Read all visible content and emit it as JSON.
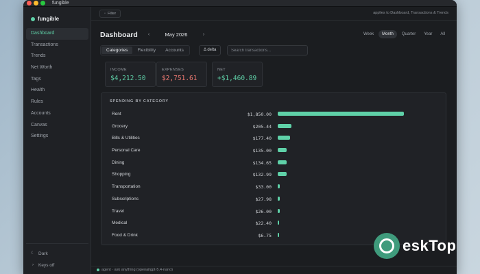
{
  "window": {
    "title": "fungible"
  },
  "brand": {
    "name": "fungible"
  },
  "sidebar": {
    "items": [
      {
        "label": "Dashboard",
        "active": true
      },
      {
        "label": "Transactions"
      },
      {
        "label": "Trends"
      },
      {
        "label": "Net Worth"
      },
      {
        "label": "Tags"
      },
      {
        "label": "Health"
      },
      {
        "label": "Rules"
      },
      {
        "label": "Accounts"
      },
      {
        "label": "Canvas"
      },
      {
        "label": "Settings"
      }
    ],
    "footer": {
      "theme_label": "Dark",
      "keys_label": "Keys off"
    }
  },
  "topbar": {
    "filter_label": "Filter",
    "note": "applies to Dashboard, Transactions & Trends"
  },
  "header": {
    "title": "Dashboard",
    "month": "May 2026",
    "prev_icon": "chevron-left-icon",
    "next_icon": "chevron-right-icon",
    "ranges": [
      {
        "label": "Week"
      },
      {
        "label": "Month",
        "active": true
      },
      {
        "label": "Quarter"
      },
      {
        "label": "Year"
      },
      {
        "label": "All"
      }
    ]
  },
  "toolbar": {
    "views": [
      {
        "label": "Categories",
        "active": true
      },
      {
        "label": "Flexibility"
      },
      {
        "label": "Accounts"
      }
    ],
    "delta_label": "Δ delta",
    "search_placeholder": "Search transactions..."
  },
  "summary": {
    "income": {
      "label": "INCOME",
      "value": "$4,212.50"
    },
    "expenses": {
      "label": "EXPENSES",
      "value": "$2,751.61"
    },
    "net": {
      "label": "NET",
      "value": "+$1,460.89"
    }
  },
  "spending": {
    "title": "SPENDING BY CATEGORY",
    "bar_color": "#5fd1a8",
    "rows": [
      {
        "category": "Rent",
        "amount": "$1,850.00",
        "value": 1850.0
      },
      {
        "category": "Grocery",
        "amount": "$205.44",
        "value": 205.44
      },
      {
        "category": "Bills & Utilities",
        "amount": "$177.40",
        "value": 177.4
      },
      {
        "category": "Personal Care",
        "amount": "$135.00",
        "value": 135.0
      },
      {
        "category": "Dining",
        "amount": "$134.65",
        "value": 134.65
      },
      {
        "category": "Shopping",
        "amount": "$132.99",
        "value": 132.99
      },
      {
        "category": "Transportation",
        "amount": "$33.00",
        "value": 33.0
      },
      {
        "category": "Subscriptions",
        "amount": "$27.98",
        "value": 27.98
      },
      {
        "category": "Travel",
        "amount": "$26.00",
        "value": 26.0
      },
      {
        "category": "Medical",
        "amount": "$22.40",
        "value": 22.4
      },
      {
        "category": "Food & Drink",
        "amount": "$6.75",
        "value": 6.75
      }
    ]
  },
  "statusbar": {
    "agent_text": "agent · ask anything (openai/gpt-5.4-nano)"
  },
  "watermark": {
    "text": "eskTop"
  },
  "colors": {
    "accent": "#5fd1a8",
    "negative": "#f27b73",
    "background": "#1b1d20"
  }
}
